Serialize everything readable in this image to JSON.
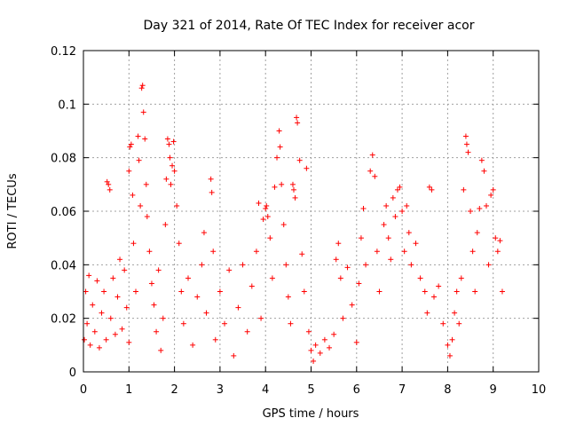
{
  "chart_data": {
    "type": "scatter",
    "title": "Day 321 of 2014, Rate Of TEC Index for receiver acor",
    "xlabel": "GPS time / hours",
    "ylabel": "ROTI / TECUs",
    "xlim": [
      0,
      10
    ],
    "ylim": [
      0,
      0.12
    ],
    "x_ticks": [
      0,
      1,
      2,
      3,
      4,
      5,
      6,
      7,
      8,
      9,
      10
    ],
    "x_tick_labels": [
      "0",
      "1",
      "2",
      "3",
      "4",
      "5",
      "6",
      "7",
      "8",
      "9",
      "10"
    ],
    "y_ticks": [
      0,
      0.02,
      0.04,
      0.06,
      0.08,
      0.1,
      0.12
    ],
    "y_tick_labels": [
      "0",
      "0.02",
      "0.04",
      "0.06",
      "0.08",
      "0.1",
      "0.12"
    ],
    "grid": true,
    "marker": "plus",
    "color": "#ff0000",
    "series": [
      {
        "name": "ROTI",
        "points": [
          [
            0.02,
            0.012
          ],
          [
            0.05,
            0.03
          ],
          [
            0.08,
            0.018
          ],
          [
            0.12,
            0.036
          ],
          [
            0.15,
            0.01
          ],
          [
            0.2,
            0.025
          ],
          [
            0.25,
            0.015
          ],
          [
            0.3,
            0.034
          ],
          [
            0.35,
            0.009
          ],
          [
            0.4,
            0.022
          ],
          [
            0.45,
            0.03
          ],
          [
            0.5,
            0.012
          ],
          [
            0.52,
            0.071
          ],
          [
            0.55,
            0.07
          ],
          [
            0.58,
            0.068
          ],
          [
            0.6,
            0.02
          ],
          [
            0.65,
            0.035
          ],
          [
            0.7,
            0.014
          ],
          [
            0.75,
            0.028
          ],
          [
            0.8,
            0.042
          ],
          [
            0.85,
            0.016
          ],
          [
            0.9,
            0.038
          ],
          [
            0.95,
            0.024
          ],
          [
            1.0,
            0.011
          ],
          [
            1.0,
            0.075
          ],
          [
            1.02,
            0.084
          ],
          [
            1.05,
            0.085
          ],
          [
            1.08,
            0.066
          ],
          [
            1.1,
            0.048
          ],
          [
            1.15,
            0.03
          ],
          [
            1.2,
            0.088
          ],
          [
            1.22,
            0.079
          ],
          [
            1.25,
            0.062
          ],
          [
            1.28,
            0.106
          ],
          [
            1.3,
            0.107
          ],
          [
            1.32,
            0.097
          ],
          [
            1.35,
            0.087
          ],
          [
            1.38,
            0.07
          ],
          [
            1.4,
            0.058
          ],
          [
            1.45,
            0.045
          ],
          [
            1.5,
            0.033
          ],
          [
            1.55,
            0.025
          ],
          [
            1.6,
            0.015
          ],
          [
            1.65,
            0.038
          ],
          [
            1.7,
            0.008
          ],
          [
            1.75,
            0.02
          ],
          [
            1.8,
            0.055
          ],
          [
            1.82,
            0.072
          ],
          [
            1.85,
            0.087
          ],
          [
            1.88,
            0.085
          ],
          [
            1.9,
            0.08
          ],
          [
            1.92,
            0.07
          ],
          [
            1.95,
            0.077
          ],
          [
            1.98,
            0.086
          ],
          [
            2.0,
            0.075
          ],
          [
            2.05,
            0.062
          ],
          [
            2.1,
            0.048
          ],
          [
            2.15,
            0.03
          ],
          [
            2.2,
            0.018
          ],
          [
            2.3,
            0.035
          ],
          [
            2.4,
            0.01
          ],
          [
            2.5,
            0.028
          ],
          [
            2.6,
            0.04
          ],
          [
            2.65,
            0.052
          ],
          [
            2.7,
            0.022
          ],
          [
            2.8,
            0.072
          ],
          [
            2.82,
            0.067
          ],
          [
            2.85,
            0.045
          ],
          [
            2.9,
            0.012
          ],
          [
            3.0,
            0.03
          ],
          [
            3.1,
            0.018
          ],
          [
            3.2,
            0.038
          ],
          [
            3.3,
            0.006
          ],
          [
            3.4,
            0.024
          ],
          [
            3.5,
            0.04
          ],
          [
            3.6,
            0.015
          ],
          [
            3.7,
            0.032
          ],
          [
            3.8,
            0.045
          ],
          [
            3.85,
            0.063
          ],
          [
            3.9,
            0.02
          ],
          [
            3.95,
            0.057
          ],
          [
            4.0,
            0.061
          ],
          [
            4.02,
            0.062
          ],
          [
            4.05,
            0.058
          ],
          [
            4.1,
            0.05
          ],
          [
            4.15,
            0.035
          ],
          [
            4.2,
            0.069
          ],
          [
            4.25,
            0.08
          ],
          [
            4.3,
            0.09
          ],
          [
            4.32,
            0.084
          ],
          [
            4.35,
            0.07
          ],
          [
            4.4,
            0.055
          ],
          [
            4.45,
            0.04
          ],
          [
            4.5,
            0.028
          ],
          [
            4.55,
            0.018
          ],
          [
            4.6,
            0.07
          ],
          [
            4.62,
            0.068
          ],
          [
            4.65,
            0.065
          ],
          [
            4.68,
            0.095
          ],
          [
            4.7,
            0.093
          ],
          [
            4.75,
            0.079
          ],
          [
            4.8,
            0.044
          ],
          [
            4.85,
            0.03
          ],
          [
            4.9,
            0.076
          ],
          [
            4.95,
            0.015
          ],
          [
            5.0,
            0.008
          ],
          [
            5.05,
            0.004
          ],
          [
            5.1,
            0.01
          ],
          [
            5.2,
            0.007
          ],
          [
            5.3,
            0.012
          ],
          [
            5.4,
            0.009
          ],
          [
            5.5,
            0.014
          ],
          [
            5.55,
            0.042
          ],
          [
            5.6,
            0.048
          ],
          [
            5.65,
            0.035
          ],
          [
            5.7,
            0.02
          ],
          [
            5.8,
            0.039
          ],
          [
            5.9,
            0.025
          ],
          [
            6.0,
            0.011
          ],
          [
            6.05,
            0.033
          ],
          [
            6.1,
            0.05
          ],
          [
            6.15,
            0.061
          ],
          [
            6.2,
            0.04
          ],
          [
            6.3,
            0.075
          ],
          [
            6.35,
            0.081
          ],
          [
            6.4,
            0.073
          ],
          [
            6.45,
            0.045
          ],
          [
            6.5,
            0.03
          ],
          [
            6.6,
            0.055
          ],
          [
            6.65,
            0.062
          ],
          [
            6.7,
            0.05
          ],
          [
            6.75,
            0.042
          ],
          [
            6.8,
            0.065
          ],
          [
            6.85,
            0.058
          ],
          [
            6.9,
            0.068
          ],
          [
            6.95,
            0.069
          ],
          [
            7.0,
            0.06
          ],
          [
            7.05,
            0.045
          ],
          [
            7.1,
            0.062
          ],
          [
            7.15,
            0.052
          ],
          [
            7.2,
            0.04
          ],
          [
            7.3,
            0.048
          ],
          [
            7.4,
            0.035
          ],
          [
            7.5,
            0.03
          ],
          [
            7.55,
            0.022
          ],
          [
            7.6,
            0.069
          ],
          [
            7.65,
            0.068
          ],
          [
            7.7,
            0.028
          ],
          [
            7.8,
            0.032
          ],
          [
            7.9,
            0.018
          ],
          [
            8.0,
            0.01
          ],
          [
            8.05,
            0.006
          ],
          [
            8.1,
            0.012
          ],
          [
            8.15,
            0.022
          ],
          [
            8.2,
            0.03
          ],
          [
            8.25,
            0.018
          ],
          [
            8.3,
            0.035
          ],
          [
            8.35,
            0.068
          ],
          [
            8.4,
            0.088
          ],
          [
            8.42,
            0.085
          ],
          [
            8.45,
            0.082
          ],
          [
            8.5,
            0.06
          ],
          [
            8.55,
            0.045
          ],
          [
            8.6,
            0.03
          ],
          [
            8.65,
            0.052
          ],
          [
            8.7,
            0.061
          ],
          [
            8.75,
            0.079
          ],
          [
            8.8,
            0.075
          ],
          [
            8.85,
            0.062
          ],
          [
            8.9,
            0.04
          ],
          [
            8.95,
            0.066
          ],
          [
            9.0,
            0.068
          ],
          [
            9.05,
            0.05
          ],
          [
            9.1,
            0.045
          ],
          [
            9.15,
            0.049
          ],
          [
            9.2,
            0.03
          ]
        ]
      }
    ]
  }
}
